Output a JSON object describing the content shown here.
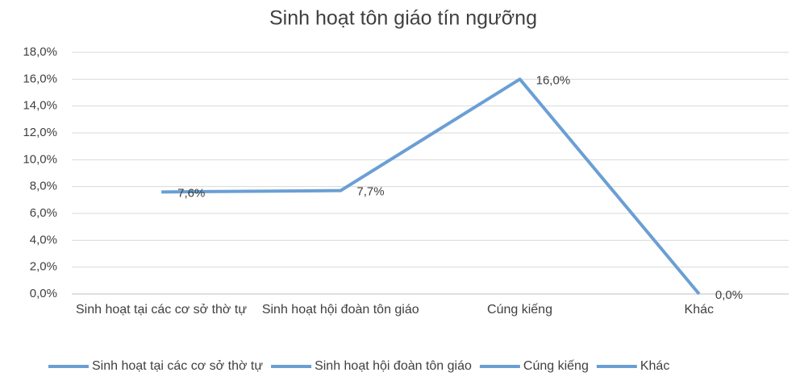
{
  "chart_data": {
    "type": "line",
    "title": "Sinh hoạt tôn giáo tín ngưỡng",
    "categories": [
      "Sinh hoạt tại các cơ sở thờ tự",
      "Sinh hoạt hội đoàn tôn giáo",
      "Cúng kiếng",
      "Khác"
    ],
    "values": [
      7.6,
      7.7,
      16.0,
      0.0
    ],
    "value_labels": [
      "7,6%",
      "7,7%",
      "16,0%",
      "0,0%"
    ],
    "color": "#6a9fd4",
    "ylim": [
      0,
      18
    ],
    "yticks": [
      {
        "value": 0,
        "label": "0,0%"
      },
      {
        "value": 2,
        "label": "2,0%"
      },
      {
        "value": 4,
        "label": "4,0%"
      },
      {
        "value": 6,
        "label": "6,0%"
      },
      {
        "value": 8,
        "label": "8,0%"
      },
      {
        "value": 10,
        "label": "10,0%"
      },
      {
        "value": 12,
        "label": "12,0%"
      },
      {
        "value": 14,
        "label": "14,0%"
      },
      {
        "value": 16,
        "label": "16,0%"
      },
      {
        "value": 18,
        "label": "18,0%"
      }
    ],
    "grid": true
  }
}
